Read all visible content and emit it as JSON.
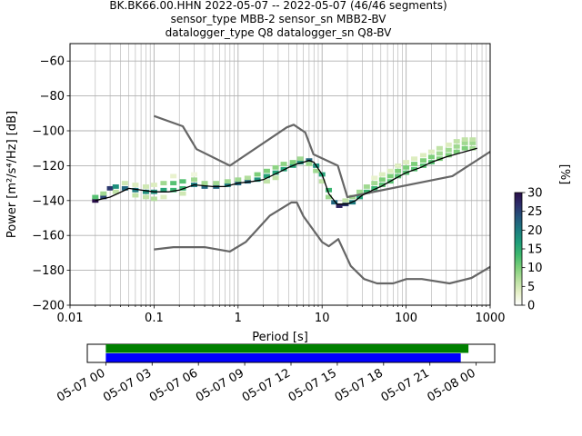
{
  "chart_data": {
    "type": "heatmap",
    "title_lines": [
      "BK.BK66.00.HHN   2022-05-07 -- 2022-05-07  (46/46 segments)",
      "sensor_type MBB-2 sensor_sn MBB2-BV",
      "datalogger_type Q8 datalogger_sn Q8-BV"
    ],
    "xlabel": "Period [s]",
    "ylabel": "Power [m²/s⁴/Hz] [dB]",
    "xscale": "log",
    "xlim": [
      0.01,
      1000
    ],
    "ylim": [
      -200,
      -50
    ],
    "x_ticks": [
      {
        "value": 0.01,
        "label": "0.01"
      },
      {
        "value": 0.1,
        "label": "0.1"
      },
      {
        "value": 1,
        "label": "1"
      },
      {
        "value": 10,
        "label": "10"
      },
      {
        "value": 100,
        "label": "100"
      },
      {
        "value": 1000,
        "label": "1000"
      }
    ],
    "y_ticks": [
      {
        "value": -60,
        "label": "−60"
      },
      {
        "value": -80,
        "label": "−80"
      },
      {
        "value": -100,
        "label": "−100"
      },
      {
        "value": -120,
        "label": "−120"
      },
      {
        "value": -140,
        "label": "−140"
      },
      {
        "value": -160,
        "label": "−160"
      },
      {
        "value": -180,
        "label": "−180"
      },
      {
        "value": -200,
        "label": "−200"
      }
    ],
    "grid": true,
    "colorbar": {
      "label": "[%]",
      "min": 0,
      "max": 30,
      "ticks": [
        {
          "value": 0,
          "label": "0"
        },
        {
          "value": 5,
          "label": "5"
        },
        {
          "value": 10,
          "label": "10"
        },
        {
          "value": 15,
          "label": "15"
        },
        {
          "value": 20,
          "label": "20"
        },
        {
          "value": 25,
          "label": "25"
        },
        {
          "value": 30,
          "label": "30"
        }
      ],
      "colors": [
        "#ffffff",
        "#e6f0c8",
        "#b8e0a0",
        "#7dcf7a",
        "#3fb96e",
        "#1f9e7a",
        "#1d7c80",
        "#25577c",
        "#2d2f6b",
        "#2a0f4a"
      ]
    },
    "line_color": "#000000",
    "model_color": "#666666",
    "mode_line": {
      "period": [
        0.02,
        0.03,
        0.05,
        0.1,
        0.15,
        0.2,
        0.3,
        0.5,
        0.7,
        1,
        1.5,
        2,
        3,
        4,
        5,
        6,
        7,
        8,
        10,
        12,
        15,
        20,
        25,
        30,
        40,
        50,
        70,
        100,
        150,
        200,
        300,
        500,
        700
      ],
      "db": [
        -140,
        -138,
        -133,
        -135,
        -135,
        -134,
        -131,
        -132,
        -132,
        -130,
        -129,
        -128,
        -124,
        -121,
        -119,
        -118,
        -117,
        -118,
        -125,
        -136,
        -142,
        -142,
        -140,
        -137,
        -134,
        -132,
        -128,
        -124,
        -121,
        -118,
        -115,
        -112,
        -110
      ]
    },
    "hist_bins": [
      {
        "period": 0.02,
        "db": -140,
        "pct": 30
      },
      {
        "period": 0.02,
        "db": -138,
        "pct": 12
      },
      {
        "period": 0.025,
        "db": -138,
        "pct": 25
      },
      {
        "period": 0.025,
        "db": -136,
        "pct": 8
      },
      {
        "period": 0.03,
        "db": -133,
        "pct": 26
      },
      {
        "period": 0.035,
        "db": -132,
        "pct": 18
      },
      {
        "period": 0.035,
        "db": -135,
        "pct": 6
      },
      {
        "period": 0.045,
        "db": -133,
        "pct": 22
      },
      {
        "period": 0.045,
        "db": -130,
        "pct": 5
      },
      {
        "period": 0.06,
        "db": -134,
        "pct": 20
      },
      {
        "period": 0.06,
        "db": -137,
        "pct": 6
      },
      {
        "period": 0.06,
        "db": -131,
        "pct": 4
      },
      {
        "period": 0.08,
        "db": -135,
        "pct": 18
      },
      {
        "period": 0.08,
        "db": -138,
        "pct": 6
      },
      {
        "period": 0.08,
        "db": -132,
        "pct": 5
      },
      {
        "period": 0.1,
        "db": -135,
        "pct": 18
      },
      {
        "period": 0.1,
        "db": -139,
        "pct": 7
      },
      {
        "period": 0.1,
        "db": -131,
        "pct": 4
      },
      {
        "period": 0.13,
        "db": -134,
        "pct": 16
      },
      {
        "period": 0.13,
        "db": -130,
        "pct": 8
      },
      {
        "period": 0.13,
        "db": -138,
        "pct": 4
      },
      {
        "period": 0.17,
        "db": -134,
        "pct": 14
      },
      {
        "period": 0.17,
        "db": -130,
        "pct": 12
      },
      {
        "period": 0.17,
        "db": -126,
        "pct": 3
      },
      {
        "period": 0.22,
        "db": -133,
        "pct": 14
      },
      {
        "period": 0.22,
        "db": -129,
        "pct": 12
      },
      {
        "period": 0.22,
        "db": -136,
        "pct": 5
      },
      {
        "period": 0.3,
        "db": -131,
        "pct": 20
      },
      {
        "period": 0.3,
        "db": -128,
        "pct": 8
      },
      {
        "period": 0.3,
        "db": -125,
        "pct": 2
      },
      {
        "period": 0.4,
        "db": -132,
        "pct": 22
      },
      {
        "period": 0.4,
        "db": -130,
        "pct": 8
      },
      {
        "period": 0.55,
        "db": -132,
        "pct": 22
      },
      {
        "period": 0.55,
        "db": -130,
        "pct": 8
      },
      {
        "period": 0.75,
        "db": -131,
        "pct": 20
      },
      {
        "period": 0.75,
        "db": -129,
        "pct": 8
      },
      {
        "period": 1.0,
        "db": -130,
        "pct": 22
      },
      {
        "period": 1.0,
        "db": -128,
        "pct": 8
      },
      {
        "period": 1.3,
        "db": -129,
        "pct": 22
      },
      {
        "period": 1.3,
        "db": -127,
        "pct": 7
      },
      {
        "period": 1.7,
        "db": -128,
        "pct": 18
      },
      {
        "period": 1.7,
        "db": -125,
        "pct": 10
      },
      {
        "period": 2.2,
        "db": -126,
        "pct": 16
      },
      {
        "period": 2.2,
        "db": -123,
        "pct": 10
      },
      {
        "period": 2.2,
        "db": -129,
        "pct": 6
      },
      {
        "period": 2.8,
        "db": -124,
        "pct": 16
      },
      {
        "period": 2.8,
        "db": -121,
        "pct": 9
      },
      {
        "period": 2.8,
        "db": -127,
        "pct": 6
      },
      {
        "period": 3.5,
        "db": -122,
        "pct": 16
      },
      {
        "period": 3.5,
        "db": -119,
        "pct": 9
      },
      {
        "period": 4.5,
        "db": -120,
        "pct": 16
      },
      {
        "period": 4.5,
        "db": -118,
        "pct": 10
      },
      {
        "period": 5.5,
        "db": -118,
        "pct": 18
      },
      {
        "period": 5.5,
        "db": -116,
        "pct": 8
      },
      {
        "period": 7.0,
        "db": -117,
        "pct": 22
      },
      {
        "period": 7.0,
        "db": -119,
        "pct": 8
      },
      {
        "period": 8.5,
        "db": -120,
        "pct": 18
      },
      {
        "period": 8.5,
        "db": -123,
        "pct": 8
      },
      {
        "period": 10.0,
        "db": -125,
        "pct": 16
      },
      {
        "period": 10.0,
        "db": -129,
        "pct": 6
      },
      {
        "period": 12.0,
        "db": -134,
        "pct": 14
      },
      {
        "period": 12.0,
        "db": -138,
        "pct": 8
      },
      {
        "period": 14.0,
        "db": -141,
        "pct": 22
      },
      {
        "period": 16.0,
        "db": -143,
        "pct": 28
      },
      {
        "period": 19.0,
        "db": -142,
        "pct": 26
      },
      {
        "period": 19.0,
        "db": -140,
        "pct": 6
      },
      {
        "period": 23.0,
        "db": -141,
        "pct": 20
      },
      {
        "period": 23.0,
        "db": -138,
        "pct": 8
      },
      {
        "period": 28.0,
        "db": -138,
        "pct": 16
      },
      {
        "period": 28.0,
        "db": -135,
        "pct": 8
      },
      {
        "period": 34.0,
        "db": -135,
        "pct": 14
      },
      {
        "period": 34.0,
        "db": -132,
        "pct": 8
      },
      {
        "period": 42.0,
        "db": -133,
        "pct": 14
      },
      {
        "period": 42.0,
        "db": -130,
        "pct": 8
      },
      {
        "period": 42.0,
        "db": -127,
        "pct": 3
      },
      {
        "period": 52.0,
        "db": -131,
        "pct": 12
      },
      {
        "period": 52.0,
        "db": -128,
        "pct": 10
      },
      {
        "period": 52.0,
        "db": -125,
        "pct": 4
      },
      {
        "period": 65.0,
        "db": -129,
        "pct": 12
      },
      {
        "period": 65.0,
        "db": -126,
        "pct": 10
      },
      {
        "period": 65.0,
        "db": -123,
        "pct": 4
      },
      {
        "period": 80.0,
        "db": -126,
        "pct": 12
      },
      {
        "period": 80.0,
        "db": -123,
        "pct": 10
      },
      {
        "period": 80.0,
        "db": -120,
        "pct": 4
      },
      {
        "period": 100.0,
        "db": -124,
        "pct": 12
      },
      {
        "period": 100.0,
        "db": -121,
        "pct": 10
      },
      {
        "period": 100.0,
        "db": -118,
        "pct": 4
      },
      {
        "period": 125.0,
        "db": -122,
        "pct": 12
      },
      {
        "period": 125.0,
        "db": -119,
        "pct": 10
      },
      {
        "period": 125.0,
        "db": -116,
        "pct": 4
      },
      {
        "period": 160.0,
        "db": -120,
        "pct": 12
      },
      {
        "period": 160.0,
        "db": -117,
        "pct": 10
      },
      {
        "period": 160.0,
        "db": -114,
        "pct": 4
      },
      {
        "period": 200.0,
        "db": -118,
        "pct": 12
      },
      {
        "period": 200.0,
        "db": -115,
        "pct": 10
      },
      {
        "period": 200.0,
        "db": -112,
        "pct": 4
      },
      {
        "period": 250.0,
        "db": -116,
        "pct": 10
      },
      {
        "period": 250.0,
        "db": -113,
        "pct": 8
      },
      {
        "period": 250.0,
        "db": -110,
        "pct": 6
      },
      {
        "period": 320.0,
        "db": -114,
        "pct": 10
      },
      {
        "period": 320.0,
        "db": -111,
        "pct": 8
      },
      {
        "period": 320.0,
        "db": -108,
        "pct": 4
      },
      {
        "period": 400.0,
        "db": -112,
        "pct": 10
      },
      {
        "period": 400.0,
        "db": -109,
        "pct": 8
      },
      {
        "period": 400.0,
        "db": -106,
        "pct": 6
      },
      {
        "period": 500.0,
        "db": -110,
        "pct": 10
      },
      {
        "period": 500.0,
        "db": -107,
        "pct": 8
      },
      {
        "period": 500.0,
        "db": -105,
        "pct": 6
      },
      {
        "period": 620.0,
        "db": -110,
        "pct": 8
      },
      {
        "period": 620.0,
        "db": -107,
        "pct": 8
      },
      {
        "period": 620.0,
        "db": -105,
        "pct": 6
      }
    ],
    "nhnm": {
      "period": [
        0.1,
        0.22,
        0.32,
        0.8,
        3.8,
        4.6,
        6.3,
        7.9,
        15.4,
        20,
        354.8,
        1000
      ],
      "db": [
        -91.5,
        -97.4,
        -110.5,
        -120,
        -98,
        -96.5,
        -101,
        -113.5,
        -120,
        -138,
        -126,
        -112
      ]
    },
    "nlnm": {
      "period": [
        0.1,
        0.17,
        0.4,
        0.8,
        1.24,
        2.4,
        4.3,
        5.0,
        6.0,
        10.0,
        12.0,
        15.6,
        21.9,
        31.6,
        45,
        70,
        101,
        154,
        328,
        600,
        1000
      ],
      "db": [
        -168,
        -166.7,
        -166.7,
        -169.2,
        -163.7,
        -148.6,
        -141.1,
        -141.1,
        -149,
        -163.8,
        -166.2,
        -162.1,
        -177.5,
        -185,
        -187.5,
        -187.5,
        -185,
        -185,
        -187.5,
        -184.4,
        -178
      ]
    },
    "timeline": {
      "tick_labels": [
        "05-07 00",
        "05-07 03",
        "05-07 06",
        "05-07 09",
        "05-07 12",
        "05-07 15",
        "05-07 18",
        "05-07 21",
        "05-08 00"
      ],
      "tick_hours": [
        0,
        3,
        6,
        9,
        12,
        15,
        18,
        21,
        24
      ],
      "range_hours": [
        -1.2,
        25.2
      ],
      "bars": [
        {
          "color": "#008000",
          "start_hour": 0,
          "end_hour": 23.5
        },
        {
          "color": "#0000ff",
          "start_hour": 0,
          "end_hour": 23.0
        }
      ]
    }
  }
}
